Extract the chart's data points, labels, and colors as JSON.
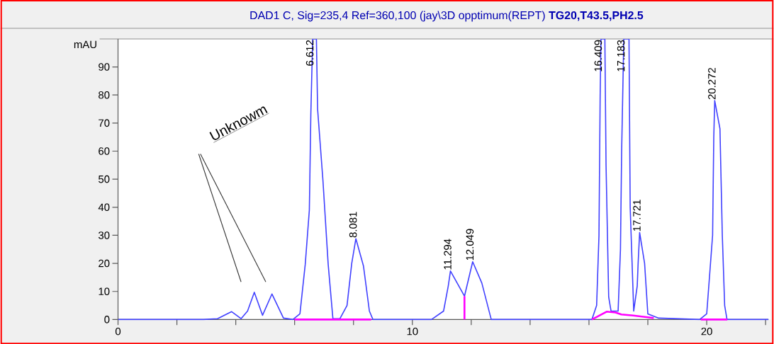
{
  "chart_data": {
    "type": "line",
    "title": "DAD1 C, Sig=235,4 Ref=360,100 (jay\\3D opptimum(REPT) **TG20,T43.5,PH2.5**",
    "ylabel": "mAU",
    "xlim": [
      0,
      22.1
    ],
    "ylim": [
      0,
      100
    ],
    "xticks": [
      0,
      {
        "value": 2,
        "label": null
      },
      {
        "value": 4,
        "label": null
      },
      {
        "value": 6,
        "label": null
      },
      {
        "value": 8,
        "label": null
      },
      10,
      {
        "value": 12,
        "label": null
      },
      {
        "value": 14,
        "label": null
      },
      {
        "value": 16,
        "label": null
      },
      {
        "value": 18,
        "label": null
      },
      20,
      {
        "value": 22,
        "label": null
      }
    ],
    "yticks": [
      0,
      10,
      20,
      30,
      40,
      50,
      60,
      70,
      80,
      90
    ],
    "series": [
      {
        "color": "#4040ff",
        "x": [
          0,
          2.9,
          3.38,
          3.86,
          4.18,
          4.4,
          4.63,
          4.91,
          5.23,
          5.62,
          5.94,
          6.18,
          6.36,
          6.5,
          6.55,
          6.612,
          6.74,
          6.78,
          6.96,
          7.14,
          7.3,
          7.54,
          7.78,
          7.94,
          8.081,
          8.34,
          8.54,
          8.66,
          10.65,
          11.06,
          11.22,
          11.294,
          11.77,
          12.049,
          12.36,
          12.68,
          16.1,
          16.26,
          16.34,
          16.38,
          16.409,
          16.54,
          16.58,
          16.67,
          16.75,
          16.99,
          17.07,
          17.11,
          17.183,
          17.36,
          17.4,
          17.52,
          17.64,
          17.67,
          17.721,
          17.89,
          18.0,
          18.37,
          19.76,
          20.0,
          20.2,
          20.24,
          20.272,
          20.45,
          20.53,
          20.61,
          20.69,
          22.1
        ],
        "values": [
          0,
          0,
          0.3,
          2.8,
          0.3,
          3,
          9.7,
          1.5,
          9.1,
          0.5,
          0,
          2,
          19.6,
          39,
          73,
          100,
          100,
          75,
          49.8,
          19.6,
          0.3,
          0.3,
          5,
          20,
          28.8,
          19,
          3,
          0,
          0,
          3,
          12,
          17.3,
          8.3,
          20.6,
          13,
          0,
          0,
          5,
          30,
          80,
          100,
          100,
          55,
          8,
          3,
          3,
          25,
          60,
          100,
          100,
          40,
          3,
          12,
          20,
          31,
          20,
          2,
          0.5,
          0,
          2,
          30,
          65,
          78,
          68,
          30,
          5,
          0,
          0
        ]
      },
      {
        "color": "#ff00ff",
        "x": [
          6.0,
          8.6
        ],
        "values": [
          0,
          0
        ]
      },
      {
        "color": "#ff00ff",
        "x": [
          11.77,
          11.77
        ],
        "values": [
          0,
          8.3
        ]
      },
      {
        "color": "#ff00ff",
        "x": [
          16.1,
          16.6,
          16.9,
          17.1,
          17.5,
          18.0,
          18.2
        ],
        "values": [
          0,
          2.8,
          2.5,
          1.8,
          1.4,
          0.8,
          0.5
        ]
      },
      {
        "color": "#ff00ff",
        "x": [
          19.8,
          20.7
        ],
        "values": [
          0,
          0
        ]
      }
    ],
    "annotations": [
      "Unknowm",
      {
        "text": "6.612",
        "x": 6.612,
        "y": 100
      },
      {
        "text": "8.081",
        "x": 8.081,
        "y": 28.8
      },
      {
        "text": "11.294",
        "x": 11.294,
        "y": 17.3
      },
      {
        "text": "12.049",
        "x": 12.049,
        "y": 20.6
      },
      {
        "text": "16.409",
        "x": 16.409,
        "y": 100
      },
      {
        "text": "17.183",
        "x": 17.183,
        "y": 100
      },
      {
        "text": "17.721",
        "x": 17.721,
        "y": 31
      },
      {
        "text": "20.272",
        "x": 20.272,
        "y": 78
      }
    ]
  }
}
